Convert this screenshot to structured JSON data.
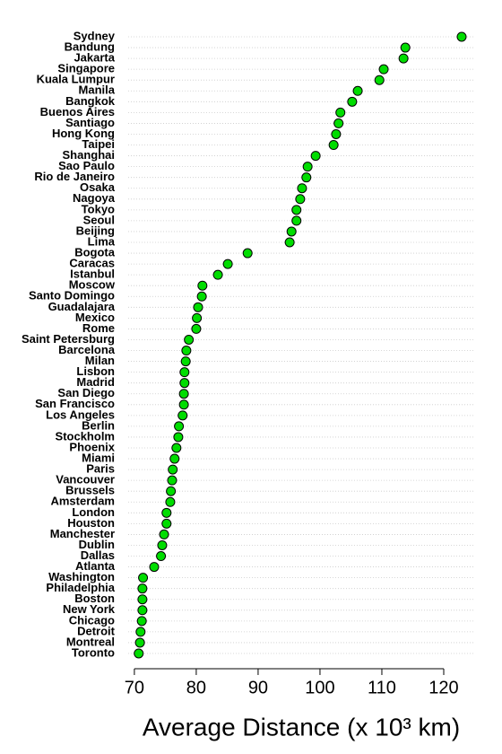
{
  "chart_data": {
    "type": "dot",
    "x_label": "Average Distance (x 10³ km)",
    "categories": [
      "Sydney",
      "Bandung",
      "Jakarta",
      "Singapore",
      "Kuala Lumpur",
      "Manila",
      "Bangkok",
      "Buenos Aires",
      "Santiago",
      "Hong Kong",
      "Taipei",
      "Shanghai",
      "Sao Paulo",
      "Rio de Janeiro",
      "Osaka",
      "Nagoya",
      "Tokyo",
      "Seoul",
      "Beijing",
      "Lima",
      "Bogota",
      "Caracas",
      "Istanbul",
      "Moscow",
      "Santo Domingo",
      "Guadalajara",
      "Mexico",
      "Rome",
      "Saint Petersburg",
      "Barcelona",
      "Milan",
      "Lisbon",
      "Madrid",
      "San Diego",
      "San Francisco",
      "Los Angeles",
      "Berlin",
      "Stockholm",
      "Phoenix",
      "Miami",
      "Paris",
      "Vancouver",
      "Brussels",
      "Amsterdam",
      "London",
      "Houston",
      "Manchester",
      "Dublin",
      "Dallas",
      "Atlanta",
      "Washington",
      "Philadelphia",
      "Boston",
      "New York",
      "Chicago",
      "Detroit",
      "Montreal",
      "Toronto"
    ],
    "values": [
      122.9,
      113.8,
      113.5,
      110.3,
      109.6,
      106.1,
      105.2,
      103.3,
      103.0,
      102.6,
      102.2,
      99.3,
      98.0,
      97.8,
      97.1,
      96.8,
      96.2,
      96.2,
      95.4,
      95.1,
      88.3,
      85.1,
      83.5,
      81.0,
      80.9,
      80.3,
      80.1,
      80.0,
      78.8,
      78.4,
      78.3,
      78.1,
      78.1,
      78.0,
      78.0,
      77.8,
      77.2,
      77.1,
      76.8,
      76.5,
      76.2,
      76.1,
      75.9,
      75.8,
      75.2,
      75.2,
      74.8,
      74.5,
      74.3,
      73.2,
      71.4,
      71.3,
      71.3,
      71.3,
      71.2,
      71.0,
      70.9,
      70.7
    ],
    "color": "#00dd00",
    "xlim": [
      69,
      125
    ],
    "xticks": [
      70,
      80,
      90,
      100,
      110,
      120
    ],
    "grid": true
  }
}
